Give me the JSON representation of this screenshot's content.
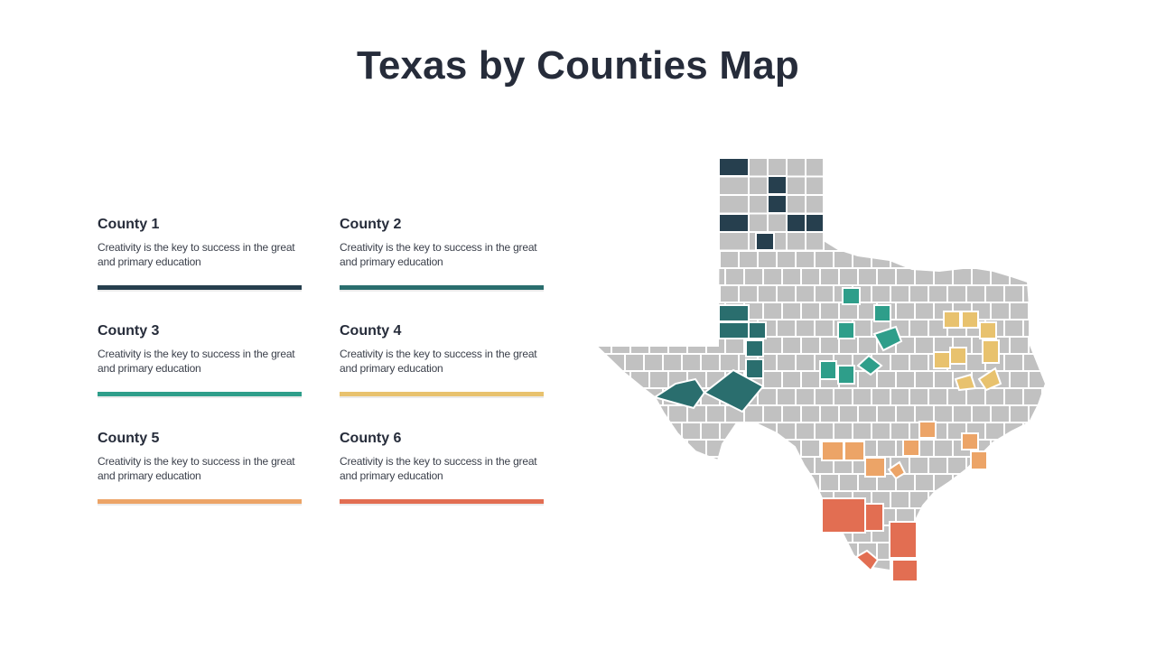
{
  "title": "Texas by Counties Map",
  "legend": [
    {
      "name": "County 1",
      "desc": "Creativity is the key to success in the great and primary education",
      "color": "#263f4e"
    },
    {
      "name": "County 2",
      "desc": "Creativity is the key to success in the great and primary education",
      "color": "#2a6e6e"
    },
    {
      "name": "County 3",
      "desc": "Creativity is the key to success in the great and primary education",
      "color": "#2e9e8a"
    },
    {
      "name": "County 4",
      "desc": "Creativity is the key to success in the great and primary education",
      "color": "#e8c26e"
    },
    {
      "name": "County 5",
      "desc": "Creativity is the key to success in the great and primary education",
      "color": "#eca467"
    },
    {
      "name": "County 6",
      "desc": "Creativity is the key to success in the great and primary education",
      "color": "#e26e52"
    }
  ],
  "map": {
    "base_color": "#c1c1c1",
    "border_color": "#ffffff"
  }
}
